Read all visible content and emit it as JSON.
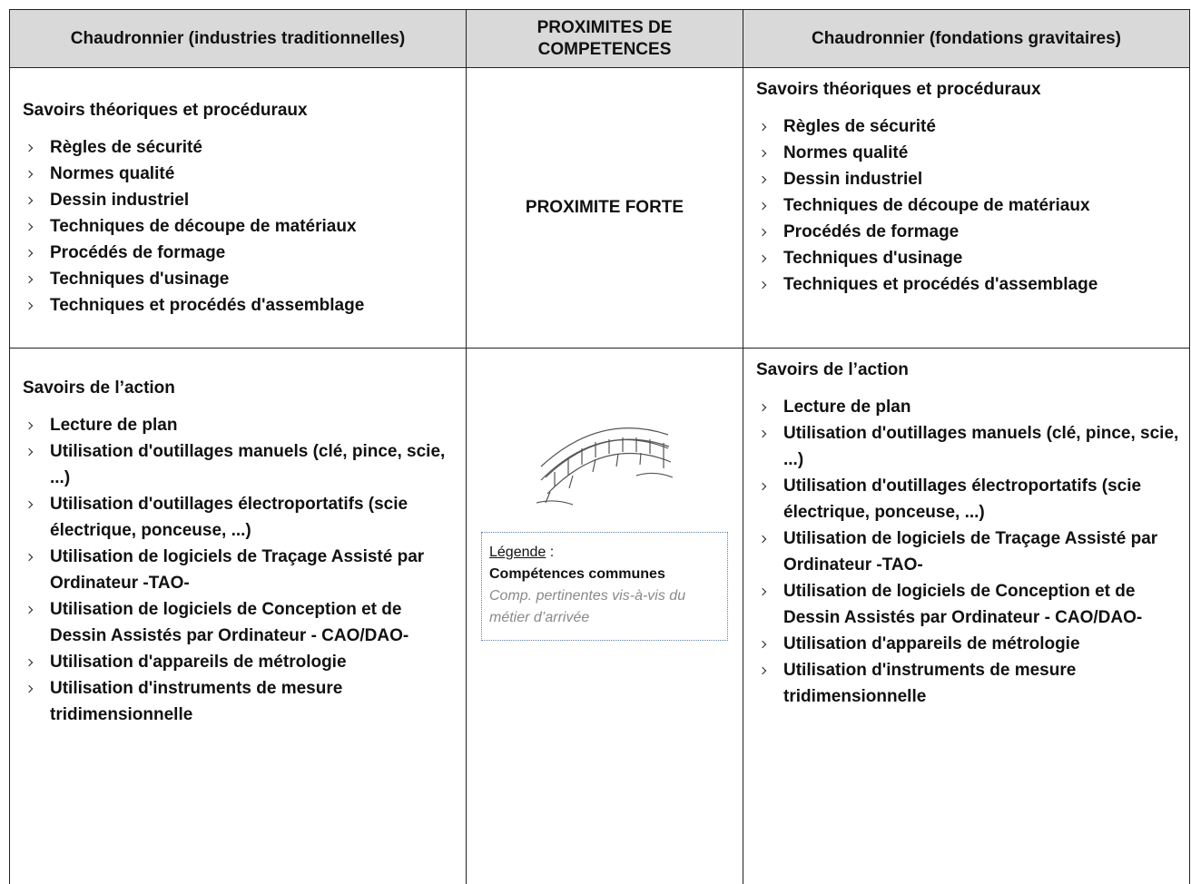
{
  "header": {
    "left": "Chaudronnier (industries traditionnelles)",
    "middle": "PROXIMITES DE COMPETENCES",
    "right": "Chaudronnier (fondations gravitaires)"
  },
  "rows": [
    {
      "left": {
        "title": "Savoirs théoriques et procéduraux",
        "items": [
          "Règles de sécurité",
          "Normes qualité",
          "Dessin industriel",
          "Techniques de découpe de matériaux",
          "Procédés de formage",
          "Techniques d'usinage",
          "Techniques et procédés d'assemblage"
        ]
      },
      "middle": "PROXIMITE FORTE",
      "right": {
        "title": "Savoirs théoriques et procéduraux",
        "items": [
          "Règles de sécurité",
          "Normes qualité",
          "Dessin industriel",
          "Techniques de découpe de matériaux",
          "Procédés de formage",
          "Techniques d'usinage",
          "Techniques et procédés d'assemblage"
        ]
      }
    },
    {
      "left": {
        "title": "Savoirs de l’action",
        "items": [
          "Lecture de plan",
          "Utilisation d'outillages manuels (clé, pince, scie, ...)",
          "Utilisation d'outillages électroportatifs (scie électrique, ponceuse, ...)",
          "Utilisation de logiciels de Traçage Assisté par Ordinateur -TAO-",
          "Utilisation de logiciels de Conception et de Dessin Assistés par Ordinateur - CAO/DAO-",
          "Utilisation d'appareils de métrologie",
          "Utilisation d'instruments de mesure tridimensionnelle"
        ]
      },
      "legend": {
        "label": "Légende",
        "colon": ":",
        "common": "Compétences communes",
        "relevant": "Comp. pertinentes vis-à-vis du métier d’arrivée"
      },
      "right": {
        "title": "Savoirs de l’action",
        "items": [
          "Lecture de plan",
          "Utilisation d'outillages manuels (clé, pince, scie, ...)",
          "Utilisation d'outillages électroportatifs (scie électrique, ponceuse, ...)",
          "Utilisation de logiciels de Traçage Assisté par Ordinateur -TAO-",
          "Utilisation de logiciels de Conception et de Dessin Assistés par Ordinateur - CAO/DAO-",
          "Utilisation d'appareils de métrologie",
          "Utilisation d'instruments de mesure tridimensionnelle"
        ]
      }
    }
  ]
}
